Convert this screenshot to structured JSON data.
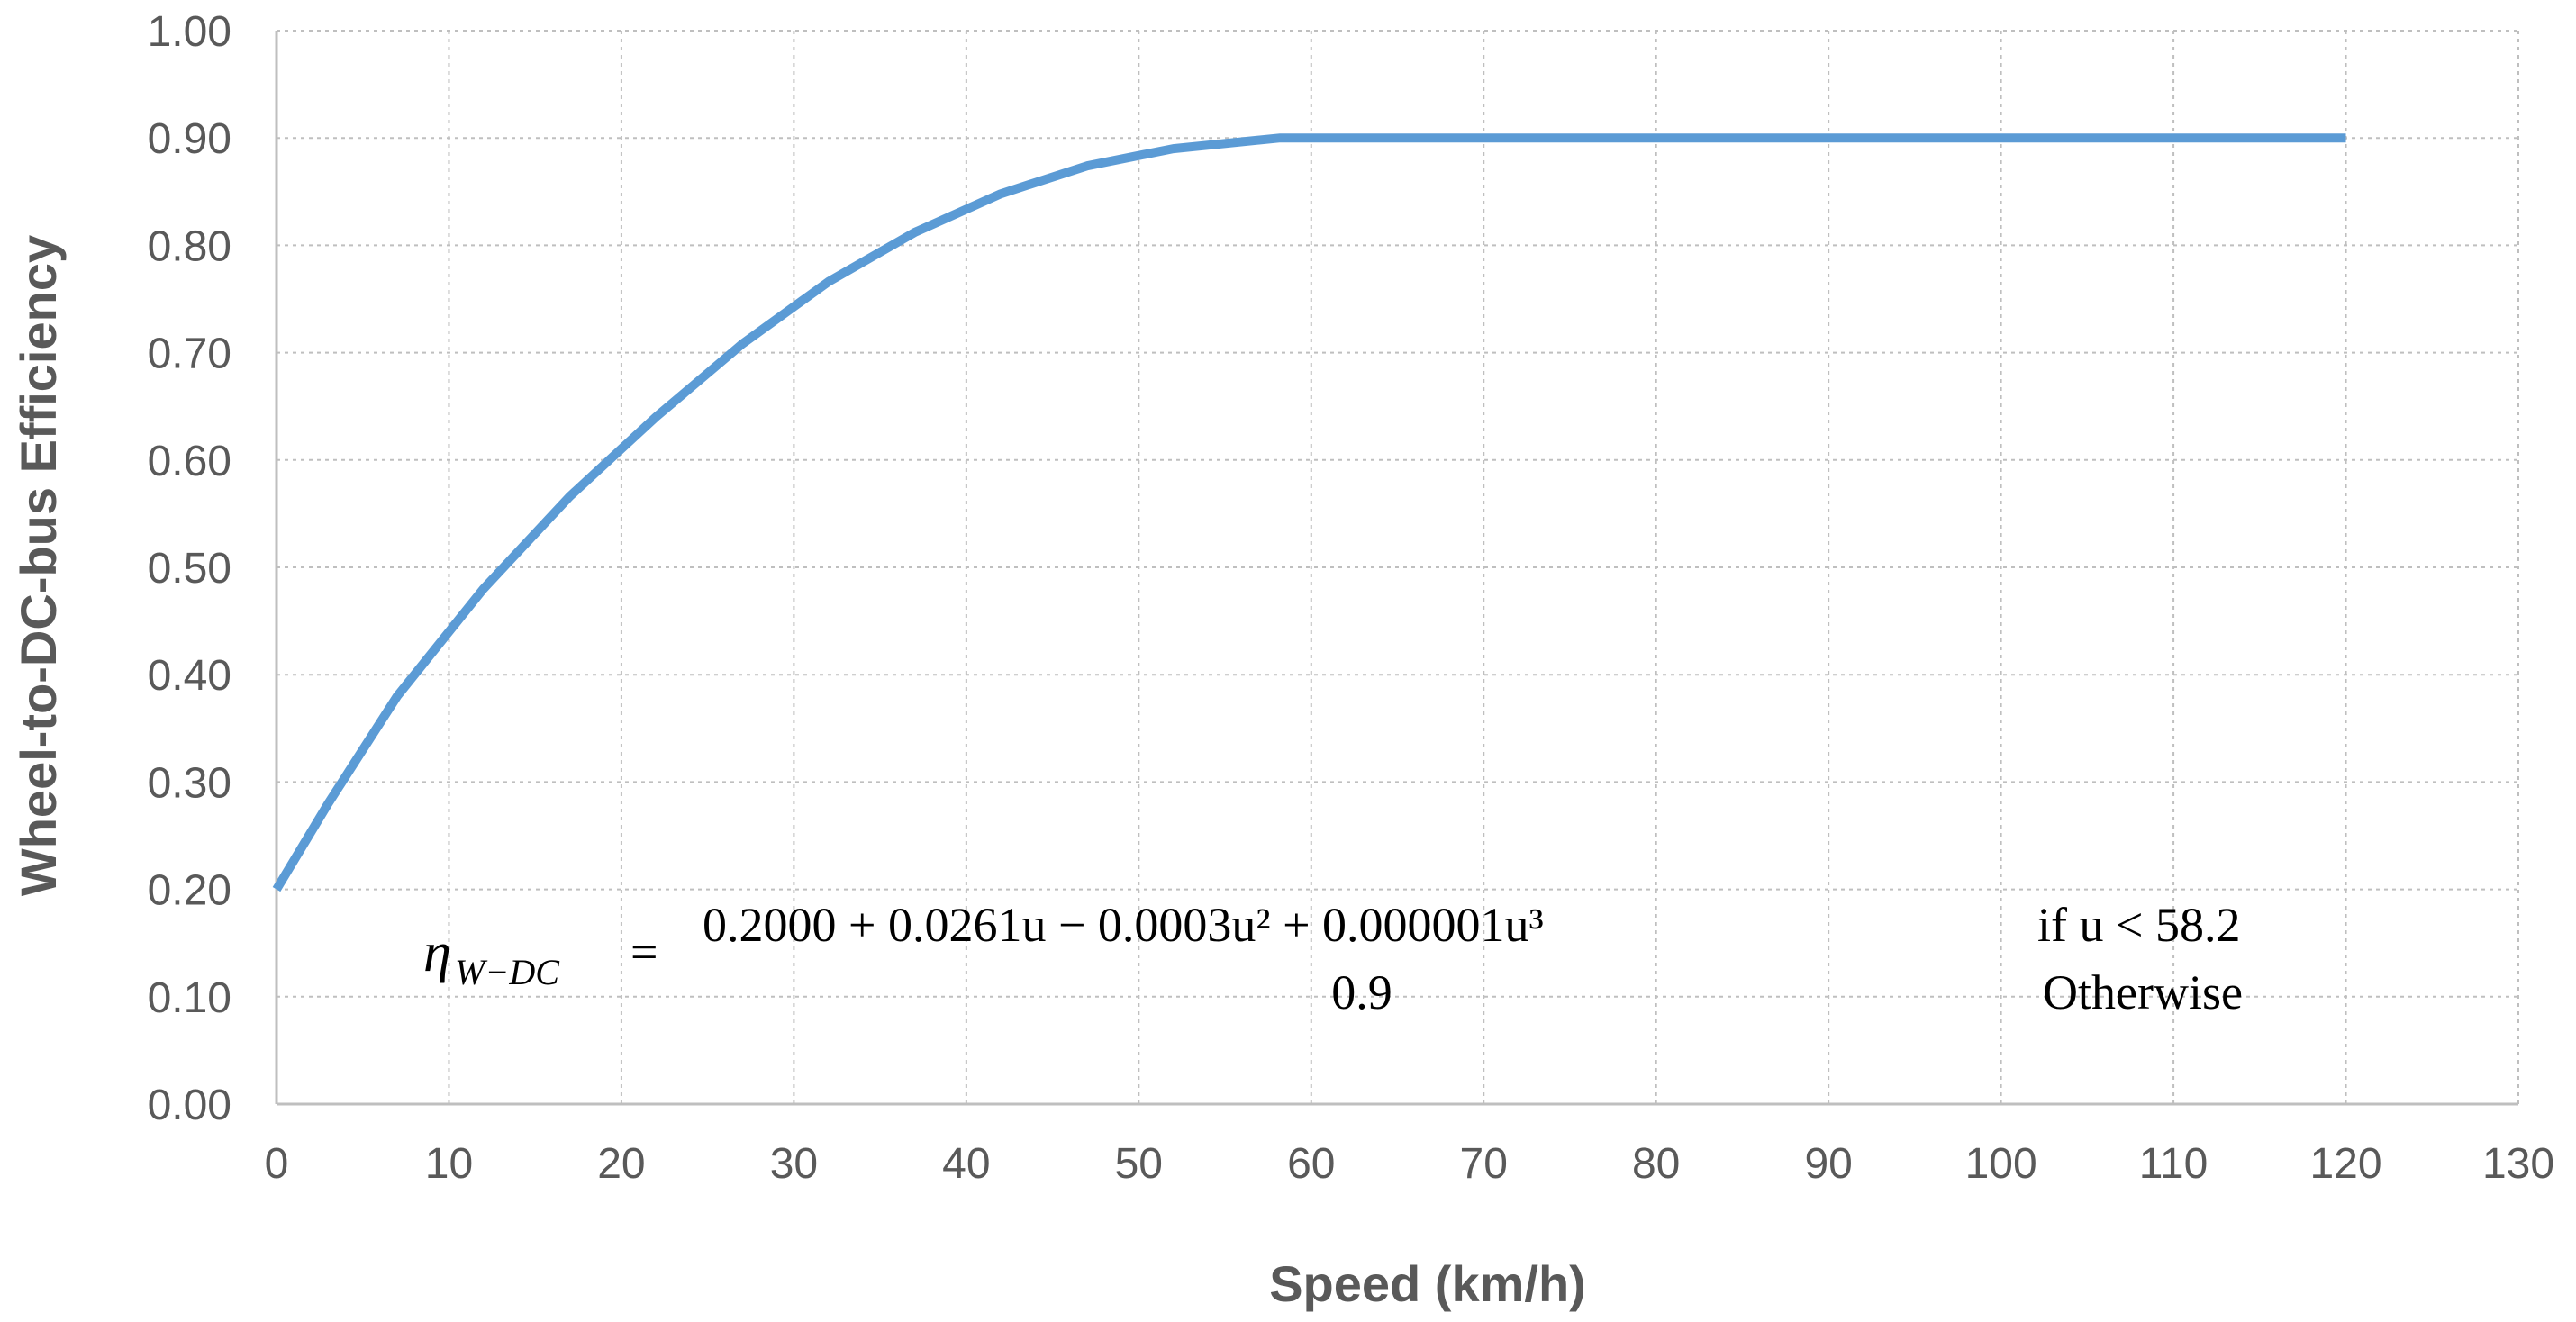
{
  "chart_data": {
    "type": "line",
    "title": "",
    "xlabel": "Speed (km/h)",
    "ylabel": "Wheel-to-DC-bus Efficiency",
    "xlim": [
      0,
      130
    ],
    "ylim": [
      0,
      1
    ],
    "x_ticks": [
      0,
      10,
      20,
      30,
      40,
      50,
      60,
      70,
      80,
      90,
      100,
      110,
      120,
      130
    ],
    "x_tick_labels": [
      "0",
      "10",
      "20",
      "30",
      "40",
      "50",
      "60",
      "70",
      "80",
      "90",
      "100",
      "110",
      "120",
      "130"
    ],
    "y_ticks": [
      0,
      0.1,
      0.2,
      0.3,
      0.4,
      0.5,
      0.6,
      0.7,
      0.8,
      0.9,
      1.0
    ],
    "y_tick_labels": [
      "0.00",
      "0.10",
      "0.20",
      "0.30",
      "0.40",
      "0.50",
      "0.60",
      "0.70",
      "0.80",
      "0.90",
      "1.00"
    ],
    "grid": true,
    "legend": "none",
    "series": [
      {
        "name": "Wheel-to-DC-bus Efficiency",
        "color": "#5b9bd5",
        "x": [
          0,
          3,
          7,
          12,
          17,
          22,
          27,
          32,
          37,
          42,
          47,
          52,
          58.2,
          60,
          70,
          80,
          90,
          100,
          110,
          120
        ],
        "values": [
          0.2,
          0.28,
          0.38,
          0.48,
          0.566,
          0.64,
          0.708,
          0.766,
          0.812,
          0.848,
          0.874,
          0.89,
          0.9,
          0.9,
          0.9,
          0.9,
          0.9,
          0.9,
          0.9,
          0.9
        ]
      }
    ],
    "annotation": {
      "symbol": "η",
      "subscript": "W−DC",
      "equals": "=",
      "case1_expression": "0.2000 + 0.0261u − 0.0003u² + 0.000001u³",
      "case1_condition": "if u < 58.2",
      "case2_expression": "0.9",
      "case2_condition": "Otherwise"
    }
  }
}
